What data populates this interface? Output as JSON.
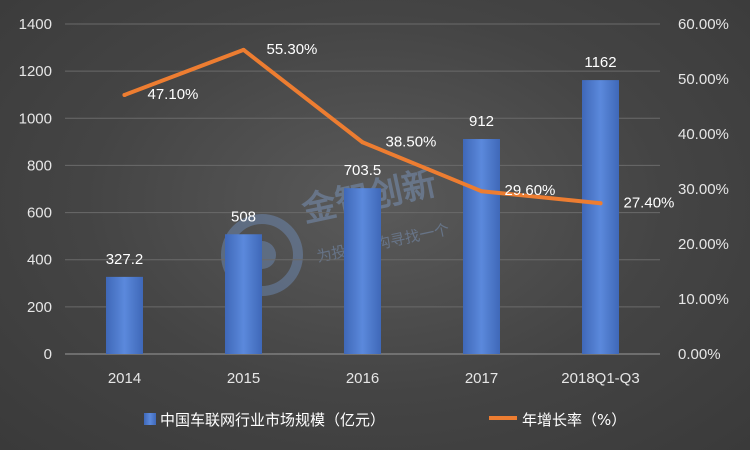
{
  "chart_data": {
    "type": "bar",
    "categories": [
      "2014",
      "2015",
      "2016",
      "2017",
      "2018Q1-Q3"
    ],
    "series": [
      {
        "name": "中国车联网行业市场规模（亿元）",
        "kind": "bar",
        "axis": "left",
        "values": [
          327.2,
          508,
          703.5,
          912,
          1162
        ],
        "labels": [
          "327.2",
          "508",
          "703.5",
          "912",
          "1162"
        ]
      },
      {
        "name": "年增长率（%）",
        "kind": "line",
        "axis": "right",
        "values": [
          47.1,
          55.3,
          38.5,
          29.6,
          27.4
        ],
        "labels": [
          "47.10%",
          "55.30%",
          "38.50%",
          "29.60%",
          "27.40%"
        ]
      }
    ],
    "y_left": {
      "ylim": [
        0,
        1400
      ],
      "ticks": [
        "0",
        "200",
        "400",
        "600",
        "800",
        "1000",
        "1200",
        "1400"
      ]
    },
    "y_right": {
      "ylim": [
        0,
        60
      ],
      "ticks": [
        "0.00%",
        "10.00%",
        "20.00%",
        "30.00%",
        "40.00%",
        "50.00%",
        "60.00%"
      ]
    },
    "legend_position": "bottom",
    "grid": true,
    "colors": {
      "bar": "#4472c4",
      "line": "#ed7d31",
      "grid": "#6a6a6a"
    }
  },
  "watermark": {
    "title": "金智创新",
    "subtitle": "为投资机构寻找一个"
  }
}
